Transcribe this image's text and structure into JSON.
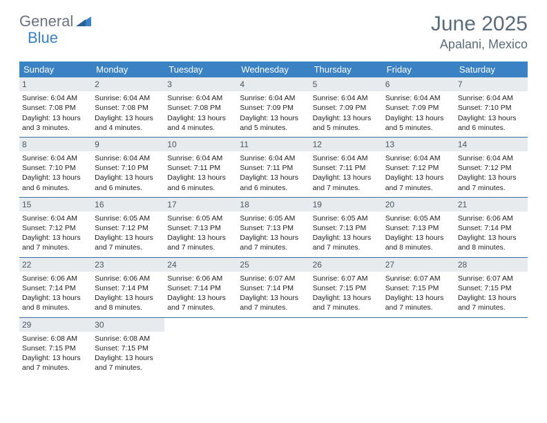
{
  "logo": {
    "part1": "General",
    "part2": "Blue"
  },
  "title": "June 2025",
  "location": "Apalani, Mexico",
  "colors": {
    "header_bg": "#3b82c4",
    "header_text": "#ffffff",
    "daynum_bg": "#e8ebee",
    "daynum_text": "#4a5560",
    "border": "#3b6ea0",
    "logo_gray": "#6b7280",
    "logo_blue": "#3b82c4",
    "title_color": "#5a6b7a"
  },
  "day_names": [
    "Sunday",
    "Monday",
    "Tuesday",
    "Wednesday",
    "Thursday",
    "Friday",
    "Saturday"
  ],
  "weeks": [
    [
      {
        "num": "1",
        "sunrise": "6:04 AM",
        "sunset": "7:08 PM",
        "dl1": "13 hours",
        "dl2": "and 3 minutes."
      },
      {
        "num": "2",
        "sunrise": "6:04 AM",
        "sunset": "7:08 PM",
        "dl1": "13 hours",
        "dl2": "and 4 minutes."
      },
      {
        "num": "3",
        "sunrise": "6:04 AM",
        "sunset": "7:08 PM",
        "dl1": "13 hours",
        "dl2": "and 4 minutes."
      },
      {
        "num": "4",
        "sunrise": "6:04 AM",
        "sunset": "7:09 PM",
        "dl1": "13 hours",
        "dl2": "and 5 minutes."
      },
      {
        "num": "5",
        "sunrise": "6:04 AM",
        "sunset": "7:09 PM",
        "dl1": "13 hours",
        "dl2": "and 5 minutes."
      },
      {
        "num": "6",
        "sunrise": "6:04 AM",
        "sunset": "7:09 PM",
        "dl1": "13 hours",
        "dl2": "and 5 minutes."
      },
      {
        "num": "7",
        "sunrise": "6:04 AM",
        "sunset": "7:10 PM",
        "dl1": "13 hours",
        "dl2": "and 6 minutes."
      }
    ],
    [
      {
        "num": "8",
        "sunrise": "6:04 AM",
        "sunset": "7:10 PM",
        "dl1": "13 hours",
        "dl2": "and 6 minutes."
      },
      {
        "num": "9",
        "sunrise": "6:04 AM",
        "sunset": "7:10 PM",
        "dl1": "13 hours",
        "dl2": "and 6 minutes."
      },
      {
        "num": "10",
        "sunrise": "6:04 AM",
        "sunset": "7:11 PM",
        "dl1": "13 hours",
        "dl2": "and 6 minutes."
      },
      {
        "num": "11",
        "sunrise": "6:04 AM",
        "sunset": "7:11 PM",
        "dl1": "13 hours",
        "dl2": "and 6 minutes."
      },
      {
        "num": "12",
        "sunrise": "6:04 AM",
        "sunset": "7:11 PM",
        "dl1": "13 hours",
        "dl2": "and 7 minutes."
      },
      {
        "num": "13",
        "sunrise": "6:04 AM",
        "sunset": "7:12 PM",
        "dl1": "13 hours",
        "dl2": "and 7 minutes."
      },
      {
        "num": "14",
        "sunrise": "6:04 AM",
        "sunset": "7:12 PM",
        "dl1": "13 hours",
        "dl2": "and 7 minutes."
      }
    ],
    [
      {
        "num": "15",
        "sunrise": "6:04 AM",
        "sunset": "7:12 PM",
        "dl1": "13 hours",
        "dl2": "and 7 minutes."
      },
      {
        "num": "16",
        "sunrise": "6:05 AM",
        "sunset": "7:12 PM",
        "dl1": "13 hours",
        "dl2": "and 7 minutes."
      },
      {
        "num": "17",
        "sunrise": "6:05 AM",
        "sunset": "7:13 PM",
        "dl1": "13 hours",
        "dl2": "and 7 minutes."
      },
      {
        "num": "18",
        "sunrise": "6:05 AM",
        "sunset": "7:13 PM",
        "dl1": "13 hours",
        "dl2": "and 7 minutes."
      },
      {
        "num": "19",
        "sunrise": "6:05 AM",
        "sunset": "7:13 PM",
        "dl1": "13 hours",
        "dl2": "and 7 minutes."
      },
      {
        "num": "20",
        "sunrise": "6:05 AM",
        "sunset": "7:13 PM",
        "dl1": "13 hours",
        "dl2": "and 8 minutes."
      },
      {
        "num": "21",
        "sunrise": "6:06 AM",
        "sunset": "7:14 PM",
        "dl1": "13 hours",
        "dl2": "and 8 minutes."
      }
    ],
    [
      {
        "num": "22",
        "sunrise": "6:06 AM",
        "sunset": "7:14 PM",
        "dl1": "13 hours",
        "dl2": "and 8 minutes."
      },
      {
        "num": "23",
        "sunrise": "6:06 AM",
        "sunset": "7:14 PM",
        "dl1": "13 hours",
        "dl2": "and 8 minutes."
      },
      {
        "num": "24",
        "sunrise": "6:06 AM",
        "sunset": "7:14 PM",
        "dl1": "13 hours",
        "dl2": "and 7 minutes."
      },
      {
        "num": "25",
        "sunrise": "6:07 AM",
        "sunset": "7:14 PM",
        "dl1": "13 hours",
        "dl2": "and 7 minutes."
      },
      {
        "num": "26",
        "sunrise": "6:07 AM",
        "sunset": "7:15 PM",
        "dl1": "13 hours",
        "dl2": "and 7 minutes."
      },
      {
        "num": "27",
        "sunrise": "6:07 AM",
        "sunset": "7:15 PM",
        "dl1": "13 hours",
        "dl2": "and 7 minutes."
      },
      {
        "num": "28",
        "sunrise": "6:07 AM",
        "sunset": "7:15 PM",
        "dl1": "13 hours",
        "dl2": "and 7 minutes."
      }
    ],
    [
      {
        "num": "29",
        "sunrise": "6:08 AM",
        "sunset": "7:15 PM",
        "dl1": "13 hours",
        "dl2": "and 7 minutes."
      },
      {
        "num": "30",
        "sunrise": "6:08 AM",
        "sunset": "7:15 PM",
        "dl1": "13 hours",
        "dl2": "and 7 minutes."
      },
      null,
      null,
      null,
      null,
      null
    ]
  ],
  "labels": {
    "sunrise": "Sunrise: ",
    "sunset": "Sunset: ",
    "daylight": "Daylight: "
  }
}
